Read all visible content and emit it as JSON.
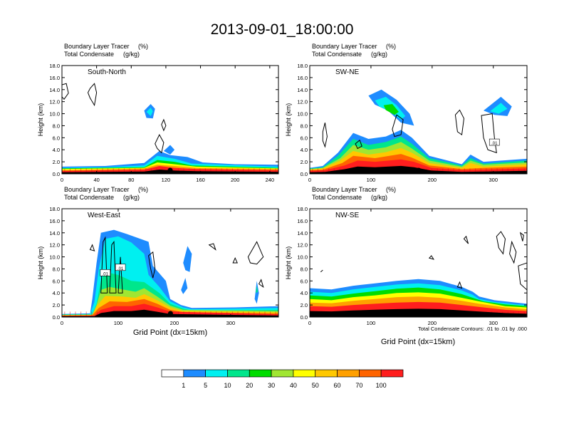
{
  "figure": {
    "title": "2013-09-01_18:00:00",
    "panel_subtitle_left_1": "Boundary Layer Tracer",
    "panel_subtitle_right_1": "(%)",
    "panel_subtitle_left_2": "Total Condensate",
    "panel_subtitle_right_2": "(g/kg)",
    "contour_note": "Total Condensate Contours: .01 to .01 by .000",
    "xlabel": "Grid Point (dx=15km)",
    "ylabel": "Height (km)"
  },
  "chart_data": [
    {
      "type": "contour",
      "name": "South-North",
      "xlim": [
        0,
        250
      ],
      "ylim": [
        0,
        18
      ],
      "xticks": [
        "0",
        "40",
        "80",
        "120",
        "160",
        "200",
        "240"
      ],
      "yticks": [
        "0.0",
        "2.0",
        "4.0",
        "6.0",
        "8.0",
        "10.0",
        "12.0",
        "14.0",
        "16.0",
        "18.0"
      ],
      "contour_labels": [],
      "marker_x": 125
    },
    {
      "type": "contour",
      "name": "SW-NE",
      "xlim": [
        0,
        355
      ],
      "ylim": [
        0,
        18
      ],
      "xticks": [
        "0",
        "100",
        "200",
        "300"
      ],
      "yticks": [
        "0.0",
        "2.0",
        "4.0",
        "6.0",
        "8.0",
        "10.0",
        "12.0",
        "14.0",
        "16.0",
        "18.0"
      ],
      "contour_labels": [
        ".01"
      ],
      "marker_x": 178
    },
    {
      "type": "contour",
      "name": "West-East",
      "xlim": [
        0,
        385
      ],
      "ylim": [
        0,
        18
      ],
      "xticks": [
        "0",
        "100",
        "200",
        "300"
      ],
      "yticks": [
        "0.0",
        "2.0",
        "4.0",
        "6.0",
        "8.0",
        "10.0",
        "12.0",
        "14.0",
        "16.0",
        "18.0"
      ],
      "contour_labels": [
        ".01",
        ".01"
      ],
      "marker_x": 193
    },
    {
      "type": "contour",
      "name": "NW-SE",
      "xlim": [
        0,
        355
      ],
      "ylim": [
        0,
        18
      ],
      "xticks": [
        "0",
        "100",
        "200",
        "300"
      ],
      "yticks": [
        "0.0",
        "2.0",
        "4.0",
        "6.0",
        "8.0",
        "10.0",
        "12.0",
        "14.0",
        "16.0",
        "18.0"
      ],
      "contour_labels": [],
      "marker_x": 178
    }
  ],
  "colorbar": {
    "labels": [
      "1",
      "5",
      "10",
      "20",
      "30",
      "40",
      "50",
      "60",
      "70",
      "100"
    ],
    "colors": [
      "#ffffff",
      "#1e8cff",
      "#00f0f0",
      "#00e68c",
      "#00dc00",
      "#a0e632",
      "#ffff00",
      "#ffc800",
      "#ffa000",
      "#ff6400",
      "#ff1e1e"
    ]
  }
}
